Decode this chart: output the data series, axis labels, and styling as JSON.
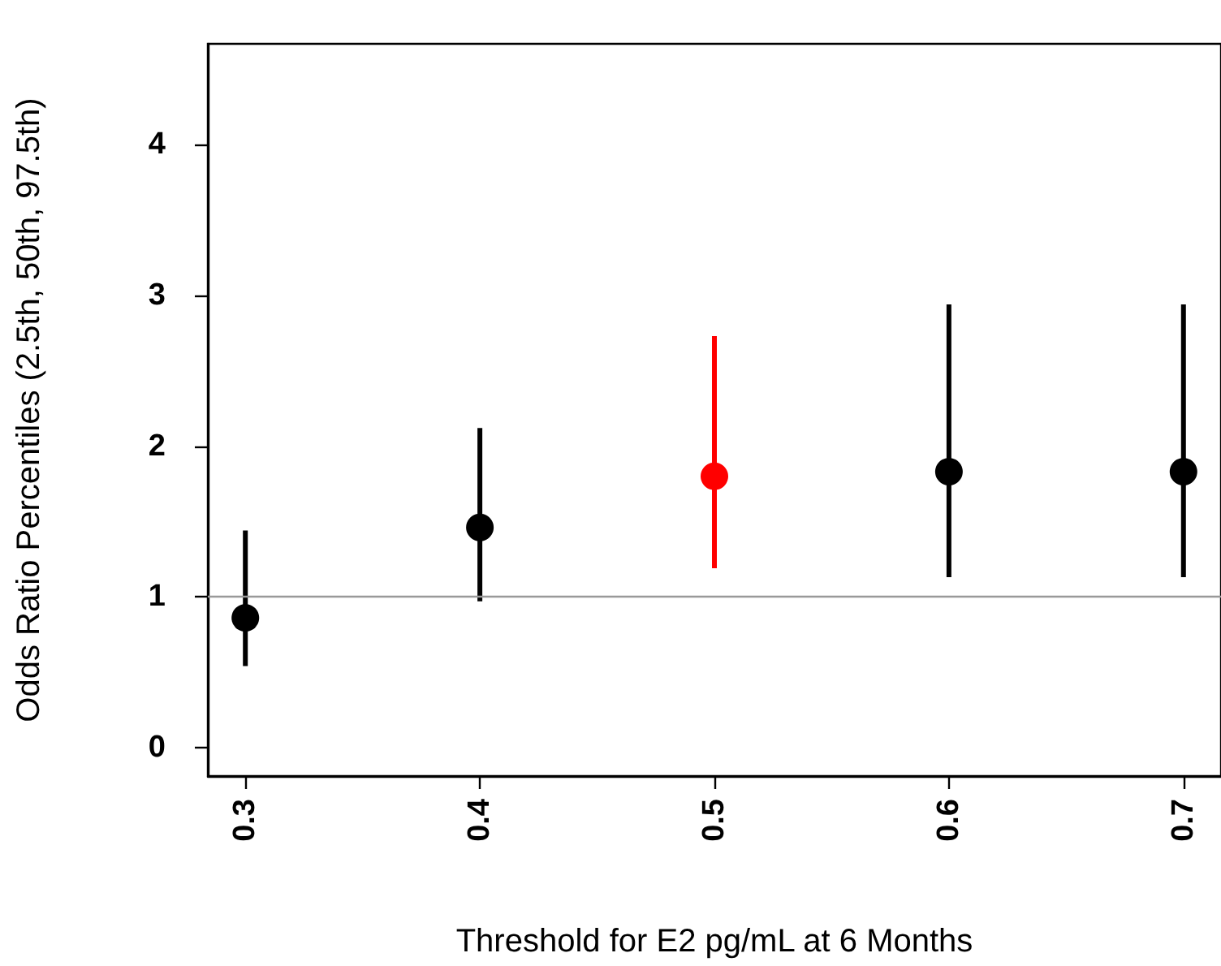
{
  "chart_data": {
    "type": "scatter",
    "xlabel": "Threshold for E2 pg/mL at 6 Months",
    "ylabel": "Odds Ratio Percentiles (2.5th, 50th, 97.5th)",
    "x": [
      0.3,
      0.4,
      0.5,
      0.6,
      0.7
    ],
    "values": [
      0.86,
      1.46,
      1.8,
      1.83,
      1.83
    ],
    "errors": [
      [
        0.54,
        1.44
      ],
      [
        0.97,
        2.12
      ],
      [
        1.19,
        2.73
      ],
      [
        1.13,
        2.94
      ],
      [
        1.13,
        2.94
      ]
    ],
    "colors": [
      "#000000",
      "#000000",
      "#ff0000",
      "#000000",
      "#000000"
    ],
    "marker": "circle",
    "xlim": [
      0.284,
      0.716
    ],
    "xticks": [
      0.3,
      0.4,
      0.5,
      0.6,
      0.7
    ],
    "ylim": [
      -0.19,
      4.67
    ],
    "yticks": [
      0,
      1,
      2,
      3,
      4
    ],
    "ref_lines": [
      {
        "axis": "y",
        "value": 1,
        "color": "#999999"
      }
    ],
    "grid": false
  }
}
